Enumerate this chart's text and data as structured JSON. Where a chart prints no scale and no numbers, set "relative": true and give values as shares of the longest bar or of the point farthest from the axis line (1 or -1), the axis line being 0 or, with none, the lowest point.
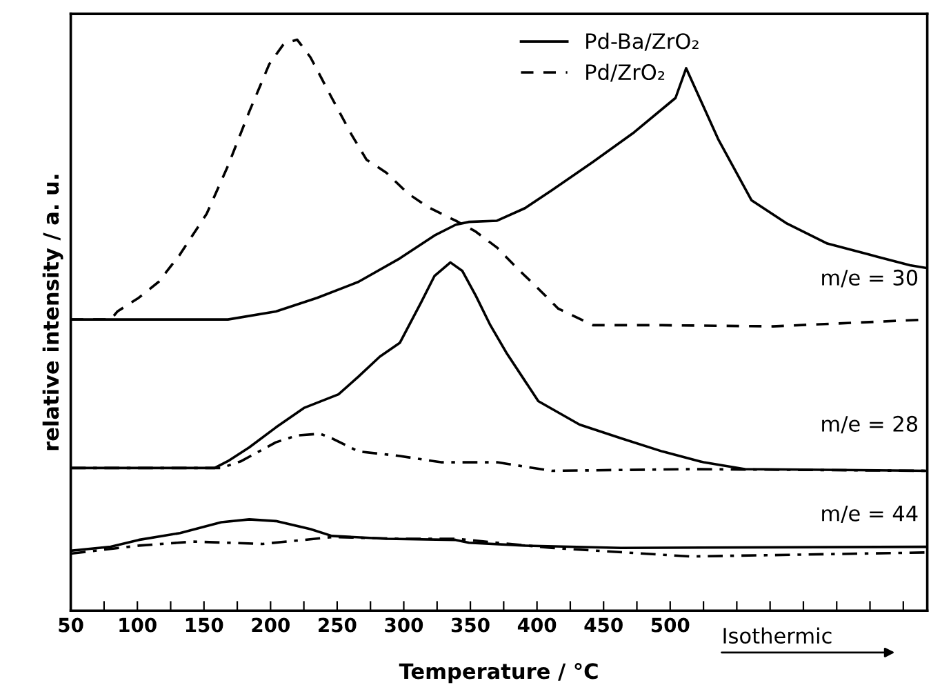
{
  "chart_data": {
    "type": "line",
    "relative": true,
    "xlabel": "Temperature / °C",
    "ylabel": "relative intensity / a. u.",
    "xlim": [
      50,
      693
    ],
    "xticks": [
      50,
      {
        "value": 75,
        "label": null
      },
      100,
      {
        "value": 125,
        "label": null
      },
      150,
      {
        "value": 175,
        "label": null
      },
      200,
      {
        "value": 225,
        "label": null
      },
      250,
      {
        "value": 275,
        "label": null
      },
      300,
      {
        "value": 325,
        "label": null
      },
      350,
      {
        "value": 375,
        "label": null
      },
      400,
      {
        "value": 425,
        "label": null
      },
      450,
      {
        "value": 475,
        "label": null
      },
      500,
      {
        "value": 525,
        "label": null
      },
      {
        "value": 550,
        "label": null
      },
      {
        "value": 575,
        "label": null
      },
      {
        "value": 600,
        "label": null
      },
      {
        "value": 625,
        "label": null
      },
      {
        "value": 650,
        "label": null
      },
      {
        "value": 675,
        "label": null
      }
    ],
    "legend": "top",
    "grid": false,
    "marker": "none",
    "annotations": [
      "m/e = 30",
      "m/e = 28",
      "m/e = 44",
      "Isothermic"
    ],
    "series": [
      {
        "name": "Pd-Ba/ZrO₂",
        "color": "#000000",
        "line_style": "solid",
        "x": [
          50,
          80,
          168,
          204,
          235,
          266,
          297,
          323,
          339,
          349,
          370,
          391,
          411,
          442,
          473,
          504,
          512,
          536,
          561,
          587,
          618,
          649,
          680,
          693
        ],
        "values": [
          0.51,
          0.51,
          0.51,
          0.524,
          0.548,
          0.576,
          0.617,
          0.657,
          0.676,
          0.681,
          0.683,
          0.705,
          0.736,
          0.786,
          0.838,
          0.898,
          0.95,
          0.826,
          0.719,
          0.679,
          0.643,
          0.624,
          0.605,
          0.6
        ]
      },
      {
        "name": "Pd/ZrO₂",
        "color": "#000000",
        "line_style": "dashed",
        "x": [
          50,
          80,
          85,
          101,
          116,
          132,
          152,
          168,
          184,
          199,
          210,
          220,
          230,
          246,
          261,
          272,
          287,
          303,
          318,
          339,
          354,
          370,
          385,
          401,
          416,
          442,
          494,
          577,
          693
        ],
        "values": [
          0.51,
          0.51,
          0.524,
          0.548,
          0.576,
          0.624,
          0.695,
          0.779,
          0.874,
          0.957,
          0.993,
          1.0,
          0.969,
          0.898,
          0.833,
          0.79,
          0.767,
          0.731,
          0.707,
          0.683,
          0.664,
          0.636,
          0.6,
          0.564,
          0.529,
          0.5,
          0.5,
          0.498,
          0.51
        ]
      },
      {
        "color": "#000000",
        "line_style": "solid",
        "x": [
          50,
          158,
          168,
          184,
          204,
          225,
          251,
          266,
          282,
          297,
          313,
          323,
          335,
          344,
          354,
          365,
          377,
          401,
          432,
          463,
          494,
          525,
          556,
          693
        ],
        "values": [
          0.25,
          0.25,
          0.262,
          0.286,
          0.321,
          0.355,
          0.379,
          0.41,
          0.445,
          0.469,
          0.54,
          0.586,
          0.61,
          0.595,
          0.552,
          0.5,
          0.452,
          0.367,
          0.326,
          0.302,
          0.279,
          0.26,
          0.248,
          0.245
        ]
      },
      {
        "color": "#000000",
        "line_style": "dashdot",
        "x": [
          50,
          163,
          178,
          204,
          220,
          237,
          246,
          266,
          297,
          328,
          370,
          411,
          515,
          693
        ],
        "values": [
          0.25,
          0.25,
          0.262,
          0.295,
          0.307,
          0.31,
          0.302,
          0.279,
          0.271,
          0.26,
          0.26,
          0.245,
          0.248,
          0.245
        ]
      },
      {
        "color": "#000000",
        "line_style": "solid",
        "x": [
          50,
          80,
          101,
          132,
          163,
          184,
          204,
          230,
          246,
          287,
          339,
          349,
          391,
          463,
          693
        ],
        "values": [
          0.105,
          0.112,
          0.124,
          0.136,
          0.155,
          0.16,
          0.157,
          0.143,
          0.131,
          0.126,
          0.124,
          0.119,
          0.114,
          0.11,
          0.112
        ]
      },
      {
        "color": "#000000",
        "line_style": "dashdot",
        "x": [
          50,
          101,
          142,
          194,
          225,
          246,
          297,
          339,
          411,
          515,
          693
        ],
        "values": [
          0.1,
          0.114,
          0.121,
          0.117,
          0.124,
          0.129,
          0.126,
          0.126,
          0.11,
          0.095,
          0.102
        ]
      }
    ]
  }
}
